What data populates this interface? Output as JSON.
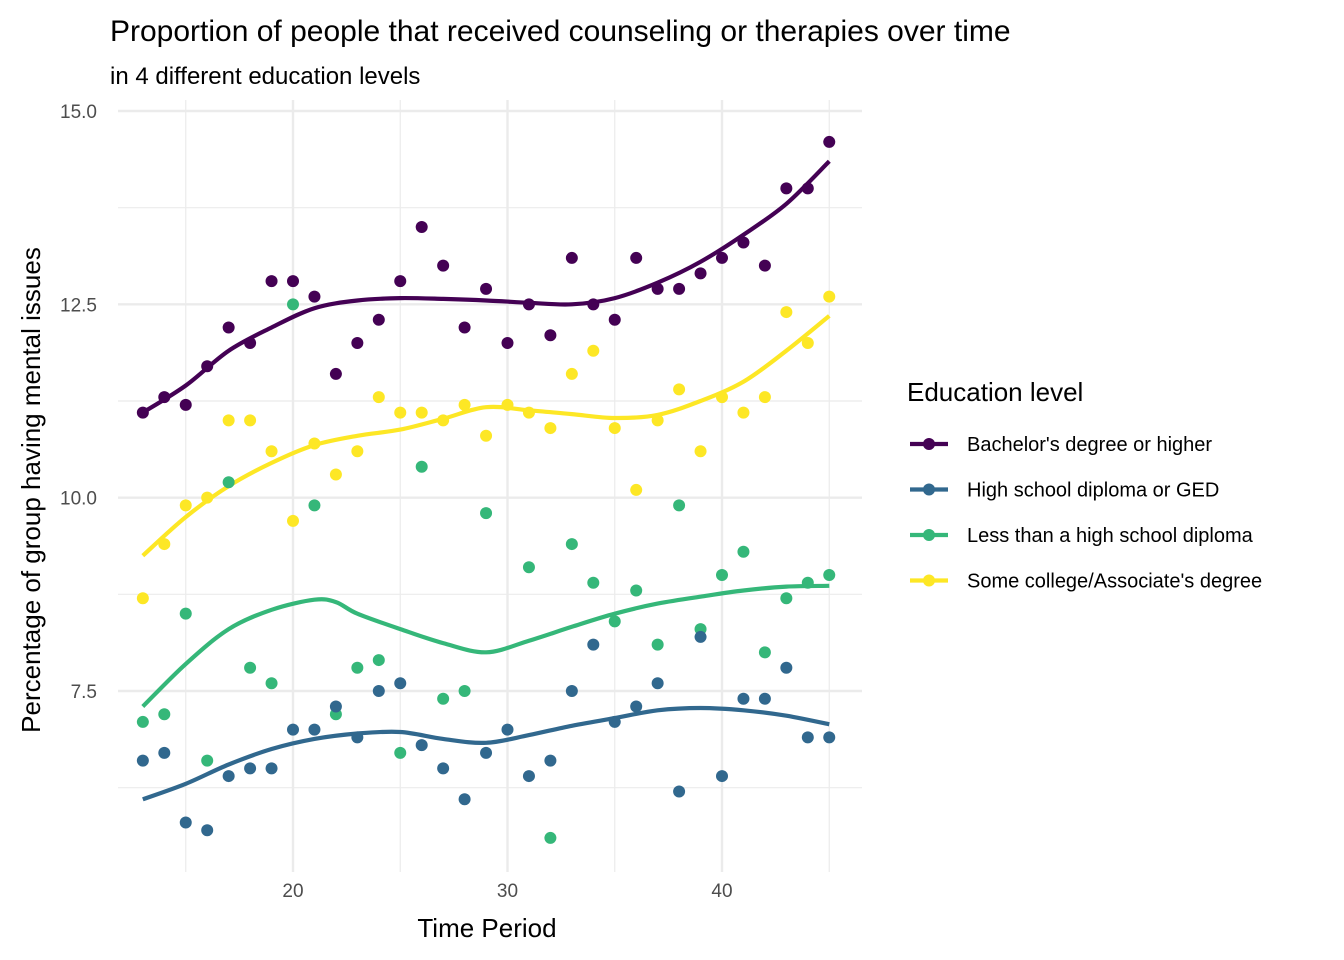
{
  "chart_data": {
    "type": "scatter",
    "title": "Proportion of people that received counseling or therapies over time",
    "subtitle": "in 4 different education levels",
    "xlabel": "Time Period",
    "ylabel": "Percentage of group having mental issues",
    "xlim": [
      11.5,
      46.5
    ],
    "ylim": [
      5.2,
      15.0
    ],
    "xticks": [
      20,
      30,
      40
    ],
    "xtick_labels": [
      "20",
      "30",
      "40"
    ],
    "yticks": [
      7.5,
      10.0,
      12.5,
      15.0
    ],
    "ytick_labels": [
      "7.5",
      "10.0",
      "12.5",
      "15.0"
    ],
    "x_minor": [
      15,
      25,
      35,
      45
    ],
    "y_minor": [
      6.25,
      8.75,
      11.25,
      13.75
    ],
    "grid": true,
    "smooth": "loess",
    "legend": {
      "title": "Education level",
      "position": "right"
    },
    "series": [
      {
        "name": "Bachelor's degree or higher",
        "color": "#440154",
        "points": [
          [
            13,
            11.1
          ],
          [
            14,
            11.3
          ],
          [
            15,
            11.2
          ],
          [
            16,
            11.7
          ],
          [
            17,
            12.2
          ],
          [
            18,
            12.0
          ],
          [
            19,
            12.8
          ],
          [
            20,
            12.8
          ],
          [
            21,
            12.6
          ],
          [
            22,
            11.6
          ],
          [
            23,
            12.0
          ],
          [
            24,
            12.3
          ],
          [
            25,
            12.8
          ],
          [
            26,
            13.5
          ],
          [
            27,
            13.0
          ],
          [
            28,
            12.2
          ],
          [
            29,
            12.7
          ],
          [
            30,
            12.0
          ],
          [
            31,
            12.5
          ],
          [
            32,
            12.1
          ],
          [
            33,
            13.1
          ],
          [
            34,
            12.5
          ],
          [
            35,
            12.3
          ],
          [
            36,
            13.1
          ],
          [
            37,
            12.7
          ],
          [
            38,
            12.7
          ],
          [
            39,
            12.9
          ],
          [
            40,
            13.1
          ],
          [
            41,
            13.3
          ],
          [
            42,
            13.0
          ],
          [
            43,
            14.0
          ],
          [
            44,
            14.0
          ],
          [
            45,
            14.6
          ]
        ],
        "trend": [
          [
            13,
            11.1
          ],
          [
            15,
            11.45
          ],
          [
            17,
            11.9
          ],
          [
            19,
            12.2
          ],
          [
            21,
            12.45
          ],
          [
            23,
            12.55
          ],
          [
            25,
            12.58
          ],
          [
            27,
            12.57
          ],
          [
            29,
            12.55
          ],
          [
            31,
            12.52
          ],
          [
            33,
            12.5
          ],
          [
            35,
            12.58
          ],
          [
            37,
            12.78
          ],
          [
            39,
            13.05
          ],
          [
            41,
            13.4
          ],
          [
            43,
            13.8
          ],
          [
            45,
            14.35
          ]
        ]
      },
      {
        "name": "High school diploma or GED",
        "color": "#31688e",
        "points": [
          [
            13,
            6.6
          ],
          [
            14,
            6.7
          ],
          [
            15,
            5.8
          ],
          [
            16,
            5.7
          ],
          [
            17,
            6.4
          ],
          [
            18,
            6.5
          ],
          [
            19,
            6.5
          ],
          [
            20,
            7.0
          ],
          [
            21,
            7.0
          ],
          [
            22,
            7.3
          ],
          [
            23,
            6.9
          ],
          [
            24,
            7.5
          ],
          [
            25,
            7.6
          ],
          [
            26,
            6.8
          ],
          [
            27,
            6.5
          ],
          [
            28,
            6.1
          ],
          [
            29,
            6.7
          ],
          [
            30,
            7.0
          ],
          [
            31,
            6.4
          ],
          [
            32,
            6.6
          ],
          [
            33,
            7.5
          ],
          [
            34,
            8.1
          ],
          [
            35,
            7.1
          ],
          [
            36,
            7.3
          ],
          [
            37,
            7.6
          ],
          [
            38,
            6.2
          ],
          [
            39,
            8.2
          ],
          [
            40,
            6.4
          ],
          [
            41,
            7.4
          ],
          [
            42,
            7.4
          ],
          [
            43,
            7.8
          ],
          [
            44,
            6.9
          ],
          [
            45,
            6.9
          ]
        ],
        "trend": [
          [
            13,
            6.1
          ],
          [
            15,
            6.3
          ],
          [
            17,
            6.55
          ],
          [
            19,
            6.75
          ],
          [
            21,
            6.88
          ],
          [
            23,
            6.95
          ],
          [
            25,
            6.97
          ],
          [
            27,
            6.88
          ],
          [
            29,
            6.83
          ],
          [
            31,
            6.93
          ],
          [
            33,
            7.05
          ],
          [
            35,
            7.15
          ],
          [
            37,
            7.25
          ],
          [
            39,
            7.28
          ],
          [
            41,
            7.25
          ],
          [
            43,
            7.18
          ],
          [
            45,
            7.07
          ]
        ]
      },
      {
        "name": "Less than a high school diploma",
        "color": "#35b779",
        "points": [
          [
            13,
            7.1
          ],
          [
            14,
            7.2
          ],
          [
            15,
            8.5
          ],
          [
            16,
            6.6
          ],
          [
            17,
            10.2
          ],
          [
            18,
            7.8
          ],
          [
            19,
            7.6
          ],
          [
            20,
            12.5
          ],
          [
            21,
            9.9
          ],
          [
            22,
            7.2
          ],
          [
            23,
            7.8
          ],
          [
            24,
            7.9
          ],
          [
            25,
            6.7
          ],
          [
            26,
            10.4
          ],
          [
            27,
            7.4
          ],
          [
            28,
            7.5
          ],
          [
            29,
            9.8
          ],
          [
            31,
            9.1
          ],
          [
            32,
            5.6
          ],
          [
            33,
            9.4
          ],
          [
            34,
            8.9
          ],
          [
            35,
            8.4
          ],
          [
            36,
            8.8
          ],
          [
            37,
            8.1
          ],
          [
            38,
            9.9
          ],
          [
            39,
            8.3
          ],
          [
            40,
            9.0
          ],
          [
            41,
            9.3
          ],
          [
            42,
            8.0
          ],
          [
            43,
            8.7
          ],
          [
            44,
            8.9
          ],
          [
            45,
            9.0
          ]
        ],
        "trend": [
          [
            13,
            7.3
          ],
          [
            15,
            7.85
          ],
          [
            17,
            8.3
          ],
          [
            19,
            8.55
          ],
          [
            21,
            8.68
          ],
          [
            22,
            8.65
          ],
          [
            23,
            8.5
          ],
          [
            25,
            8.3
          ],
          [
            27,
            8.12
          ],
          [
            29,
            8.0
          ],
          [
            31,
            8.15
          ],
          [
            33,
            8.33
          ],
          [
            35,
            8.5
          ],
          [
            37,
            8.63
          ],
          [
            39,
            8.72
          ],
          [
            41,
            8.8
          ],
          [
            43,
            8.85
          ],
          [
            45,
            8.86
          ]
        ]
      },
      {
        "name": "Some college/Associate's degree",
        "color": "#fde725",
        "points": [
          [
            13,
            8.7
          ],
          [
            14,
            9.4
          ],
          [
            15,
            9.9
          ],
          [
            16,
            10.0
          ],
          [
            17,
            11.0
          ],
          [
            18,
            11.0
          ],
          [
            19,
            10.6
          ],
          [
            20,
            9.7
          ],
          [
            21,
            10.7
          ],
          [
            22,
            10.3
          ],
          [
            23,
            10.6
          ],
          [
            24,
            11.3
          ],
          [
            25,
            11.1
          ],
          [
            26,
            11.1
          ],
          [
            27,
            11.0
          ],
          [
            28,
            11.2
          ],
          [
            29,
            10.8
          ],
          [
            30,
            11.2
          ],
          [
            31,
            11.1
          ],
          [
            32,
            10.9
          ],
          [
            33,
            11.6
          ],
          [
            34,
            11.9
          ],
          [
            35,
            10.9
          ],
          [
            36,
            10.1
          ],
          [
            37,
            11.0
          ],
          [
            38,
            11.4
          ],
          [
            39,
            10.6
          ],
          [
            40,
            11.3
          ],
          [
            41,
            11.1
          ],
          [
            42,
            11.3
          ],
          [
            43,
            12.4
          ],
          [
            44,
            12.0
          ],
          [
            45,
            12.6
          ]
        ],
        "trend": [
          [
            13,
            9.25
          ],
          [
            15,
            9.75
          ],
          [
            17,
            10.15
          ],
          [
            19,
            10.45
          ],
          [
            21,
            10.68
          ],
          [
            23,
            10.8
          ],
          [
            25,
            10.88
          ],
          [
            27,
            11.02
          ],
          [
            29,
            11.17
          ],
          [
            31,
            11.13
          ],
          [
            33,
            11.08
          ],
          [
            35,
            11.03
          ],
          [
            37,
            11.07
          ],
          [
            39,
            11.25
          ],
          [
            41,
            11.5
          ],
          [
            43,
            11.9
          ],
          [
            45,
            12.35
          ]
        ]
      }
    ]
  }
}
